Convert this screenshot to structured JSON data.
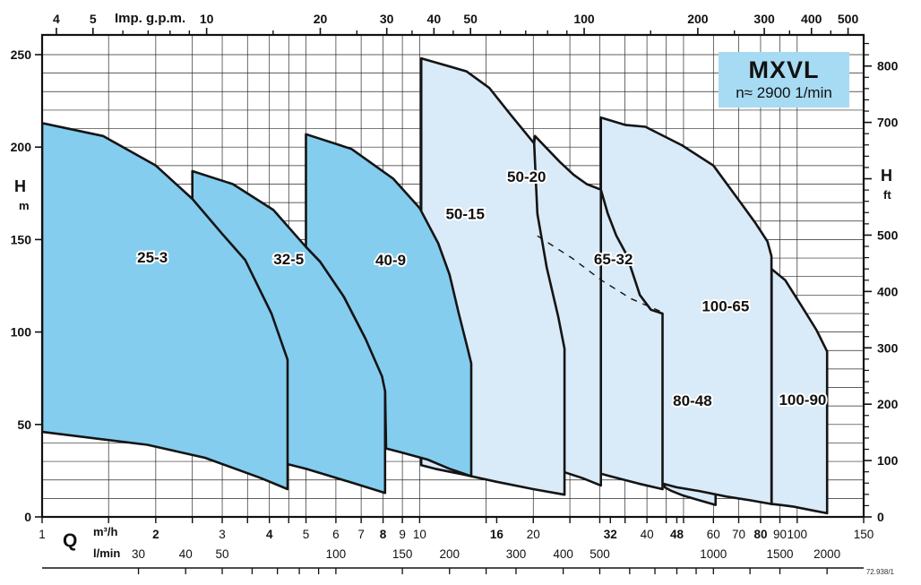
{
  "title_box": {
    "model": "MXVL",
    "speed": "n≈ 2900 1/min"
  },
  "ref_number": "72.938/1",
  "chart_data": {
    "type": "area",
    "title": "MXVL",
    "speed_note": "n≈ 2900 1/min",
    "x_scale": "log",
    "x_range_m3h": [
      1,
      150
    ],
    "y_range_m": [
      0,
      260
    ],
    "grid": "on",
    "x_axis_top": {
      "label": "Imp. g.p.m.",
      "unit_to_m3h": 0.27276,
      "labeled_ticks": [
        4,
        5,
        10,
        20,
        30,
        40,
        50,
        100,
        200,
        300,
        400,
        500
      ],
      "minor_ticks": [
        6,
        7,
        8,
        9,
        15,
        25,
        35,
        45,
        60,
        70,
        80,
        90,
        150,
        250,
        350,
        450
      ]
    },
    "x_axis_bottom": {
      "label": "Q",
      "unit_m3h": "m³/h",
      "unit_lmin": "l/min",
      "m3h_labeled_ticks": [
        1,
        2,
        3,
        4,
        5,
        6,
        7,
        8,
        9,
        10,
        16,
        20,
        32,
        40,
        48,
        60,
        70,
        80,
        90,
        100,
        150
      ],
      "m3h_bold_ticks": [
        2,
        4,
        8,
        16,
        32,
        48,
        80
      ],
      "lmin_labeled_ticks": [
        30,
        40,
        50,
        100,
        150,
        200,
        300,
        400,
        500,
        1000,
        1500,
        2000
      ],
      "lmin_minor_ticks": [
        60,
        70,
        80,
        90,
        250,
        600,
        700,
        800,
        900,
        1250
      ],
      "lmin_to_m3h": 0.06
    },
    "y_axis_left": {
      "label": "H",
      "unit": "m",
      "labeled_ticks": [
        0,
        50,
        100,
        150,
        200,
        250
      ],
      "minor_step": 10
    },
    "y_axis_right": {
      "label": "H",
      "unit": "ft",
      "tick_values": [
        800,
        700,
        600,
        500,
        400,
        300,
        200,
        100,
        0
      ],
      "tick_labels": [
        "800",
        "700",
        "",
        "500",
        "400",
        "300",
        "200",
        "100",
        "0"
      ],
      "minor_step": 20,
      "ft_per_m": 3.2808
    },
    "grid_q_lines": [
      1,
      1.5,
      2,
      2.5,
      3,
      3.5,
      4,
      4.5,
      5,
      6,
      7,
      8,
      9,
      10,
      15,
      20,
      25,
      30,
      35,
      40,
      45,
      50,
      60,
      70,
      80,
      90,
      100,
      150
    ],
    "colors": {
      "dark_fill": "#84cdef",
      "light_fill": "#d9eaf8",
      "stroke": "#141414",
      "box_fill": "#a7dbf3",
      "grid": "#2a2a2a"
    },
    "envelopes": [
      {
        "model": "100-90",
        "fill": "light",
        "label_at": [
          103.4,
          63.5
        ],
        "points": [
          [
            85.6,
            7
          ],
          [
            85.6,
            134
          ],
          [
            93,
            128
          ],
          [
            103.5,
            113
          ],
          [
            112.5,
            101
          ],
          [
            120,
            89.5
          ],
          [
            120,
            2
          ],
          [
            110,
            3.5
          ],
          [
            98,
            5.5
          ],
          [
            90,
            6.5
          ]
        ]
      },
      {
        "model": "80-48",
        "fill": "light",
        "label_at": [
          52.8,
          63
        ],
        "points": [
          [
            44.6,
            16
          ],
          [
            44.6,
            107
          ],
          [
            48,
            99
          ],
          [
            52,
            90
          ],
          [
            56,
            81
          ],
          [
            60.8,
            70
          ],
          [
            60.8,
            6.5
          ],
          [
            55,
            9
          ],
          [
            50,
            11.5
          ],
          [
            46.5,
            14
          ]
        ]
      },
      {
        "model": "100-65",
        "fill": "light",
        "label_at": [
          64.6,
          114
        ],
        "points": [
          [
            30.2,
            25
          ],
          [
            30.2,
            216
          ],
          [
            35,
            212
          ],
          [
            39.6,
            211
          ],
          [
            49.5,
            201
          ],
          [
            60,
            190
          ],
          [
            70.8,
            170
          ],
          [
            77.5,
            159
          ],
          [
            83.4,
            149
          ],
          [
            85.5,
            141
          ],
          [
            85.5,
            7
          ],
          [
            75,
            9
          ],
          [
            65,
            11
          ],
          [
            55,
            14
          ],
          [
            48,
            16
          ],
          [
            44,
            18
          ],
          [
            38,
            21
          ],
          [
            33,
            24
          ]
        ]
      },
      {
        "model": "65-32",
        "fill": "light",
        "label_at": [
          32.6,
          139.5
        ],
        "points": [
          [
            24,
            29
          ],
          [
            24,
            172
          ],
          [
            27,
            179
          ],
          [
            30.2,
            177
          ],
          [
            31.5,
            164
          ],
          [
            33.2,
            152
          ],
          [
            35.3,
            142
          ],
          [
            38.3,
            120
          ],
          [
            41,
            112
          ],
          [
            44,
            110
          ],
          [
            44,
            15
          ],
          [
            38,
            18
          ],
          [
            32,
            22
          ],
          [
            27,
            26
          ]
        ]
      },
      {
        "model": "50-20",
        "fill": "light",
        "label_at": [
          19.2,
          184
        ],
        "points": [
          [
            20.1,
            202
          ],
          [
            20.2,
            206
          ],
          [
            23.5,
            192
          ],
          [
            25.6,
            185
          ],
          [
            27.7,
            180
          ],
          [
            30.2,
            177
          ],
          [
            30.2,
            17
          ],
          [
            27,
            21
          ],
          [
            23.5,
            25
          ],
          [
            20.5,
            29
          ]
        ]
      },
      {
        "model": "50-15",
        "fill": "light",
        "label_at": [
          13.2,
          164
        ],
        "points": [
          [
            10.1,
            28
          ],
          [
            10.1,
            248
          ],
          [
            13.3,
            241
          ],
          [
            15.3,
            232
          ],
          [
            17.5,
            217
          ],
          [
            20.1,
            202
          ],
          [
            20.5,
            164
          ],
          [
            21.7,
            135
          ],
          [
            23.3,
            108
          ],
          [
            24.2,
            91
          ],
          [
            24.2,
            12
          ],
          [
            20,
            15
          ],
          [
            16,
            19
          ],
          [
            13,
            23
          ],
          [
            11,
            26
          ]
        ]
      },
      {
        "model": "40-9",
        "fill": "dark",
        "label_at": [
          8.38,
          139
        ],
        "points": [
          [
            5,
            146
          ],
          [
            5,
            207
          ],
          [
            6.6,
            199
          ],
          [
            8.5,
            183
          ],
          [
            10,
            167
          ],
          [
            11.2,
            148
          ],
          [
            12,
            131
          ],
          [
            12.7,
            110
          ],
          [
            13.4,
            91
          ],
          [
            13.7,
            83
          ],
          [
            13.7,
            22
          ],
          [
            12,
            26
          ],
          [
            10.5,
            31
          ],
          [
            8.9,
            35
          ],
          [
            8.15,
            37
          ],
          [
            8.1,
            68
          ],
          [
            7.2,
            96
          ],
          [
            6.3,
            119
          ],
          [
            5.45,
            138
          ]
        ]
      },
      {
        "model": "32-5",
        "fill": "dark",
        "label_at": [
          4.5,
          139.5
        ],
        "points": [
          [
            2.5,
            40
          ],
          [
            2.5,
            187
          ],
          [
            3.2,
            180
          ],
          [
            4.1,
            166
          ],
          [
            5,
            146
          ],
          [
            5.45,
            138
          ],
          [
            6.3,
            119
          ],
          [
            7.2,
            96
          ],
          [
            7.95,
            76
          ],
          [
            8.1,
            68
          ],
          [
            8.1,
            13
          ],
          [
            6.5,
            19
          ],
          [
            5,
            26
          ],
          [
            4,
            31
          ],
          [
            3.2,
            36
          ]
        ]
      },
      {
        "model": "25-3",
        "fill": "dark",
        "label_at": [
          1.96,
          140.5
        ],
        "points": [
          [
            1,
            213
          ],
          [
            1.45,
            206
          ],
          [
            2,
            190
          ],
          [
            2.5,
            172
          ],
          [
            3,
            153
          ],
          [
            3.45,
            139
          ],
          [
            4.05,
            110
          ],
          [
            4.47,
            85
          ],
          [
            4.47,
            15
          ],
          [
            3.8,
            21
          ],
          [
            2.7,
            32
          ],
          [
            1.9,
            39
          ],
          [
            1,
            46
          ]
        ]
      }
    ],
    "dashed_line": [
      [
        20.5,
        152
      ],
      [
        25.3,
        140
      ],
      [
        30.3,
        128
      ],
      [
        36.3,
        118
      ],
      [
        43.6,
        111
      ]
    ]
  }
}
